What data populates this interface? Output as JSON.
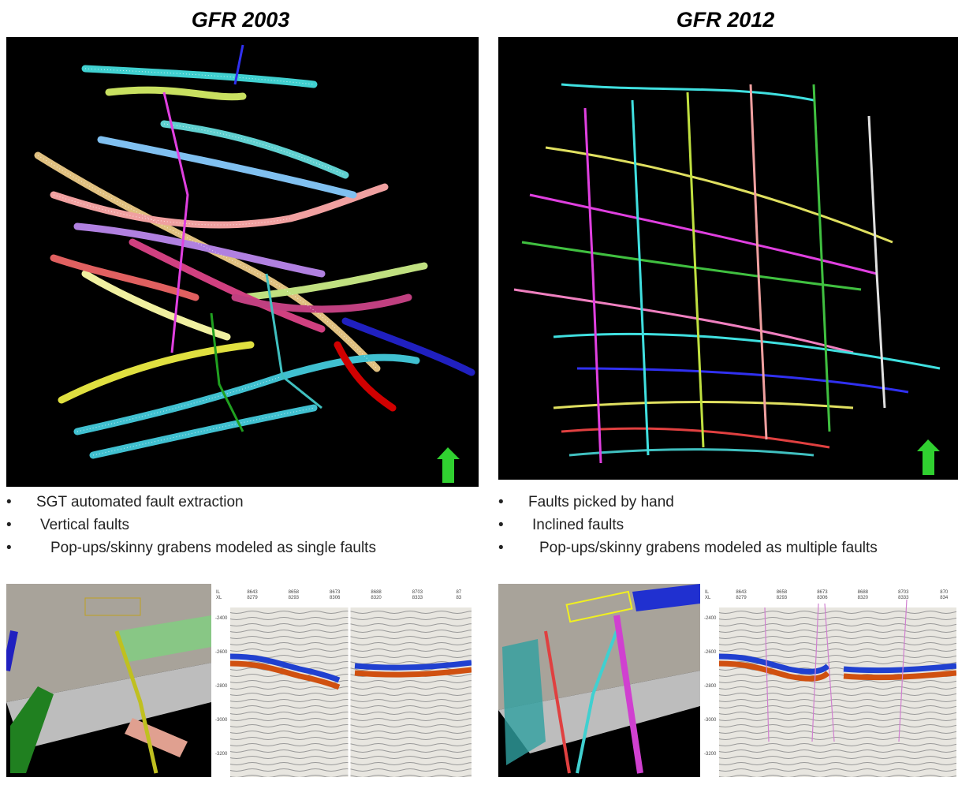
{
  "columns": [
    {
      "title": "GFR 2003",
      "bullets": [
        "SGT automated fault extraction",
        "Vertical faults",
        "Pop-ups/skinny grabens modeled as single faults"
      ],
      "seismic": {
        "il_label": "IL",
        "xl_label": "XL",
        "inlines": [
          "8643",
          "8658",
          "8673",
          "8688",
          "8703",
          "87"
        ],
        "crosslines": [
          "8279",
          "8293",
          "8306",
          "8320",
          "8333",
          "83"
        ],
        "depths": [
          "-2400",
          "-2600",
          "-2800",
          "-3000",
          "-3200"
        ]
      }
    },
    {
      "title": "GFR 2012",
      "bullets": [
        "Faults picked by hand",
        "Inclined faults",
        "Pop-ups/skinny grabens modeled as multiple faults"
      ],
      "seismic": {
        "il_label": "IL",
        "xl_label": "XL",
        "inlines": [
          "8643",
          "8658",
          "8673",
          "8688",
          "8703",
          "870"
        ],
        "crosslines": [
          "8279",
          "8293",
          "8306",
          "8320",
          "8333",
          "834"
        ],
        "depths": [
          "-2400",
          "-2600",
          "-2800",
          "-3000",
          "-3200"
        ]
      }
    }
  ]
}
